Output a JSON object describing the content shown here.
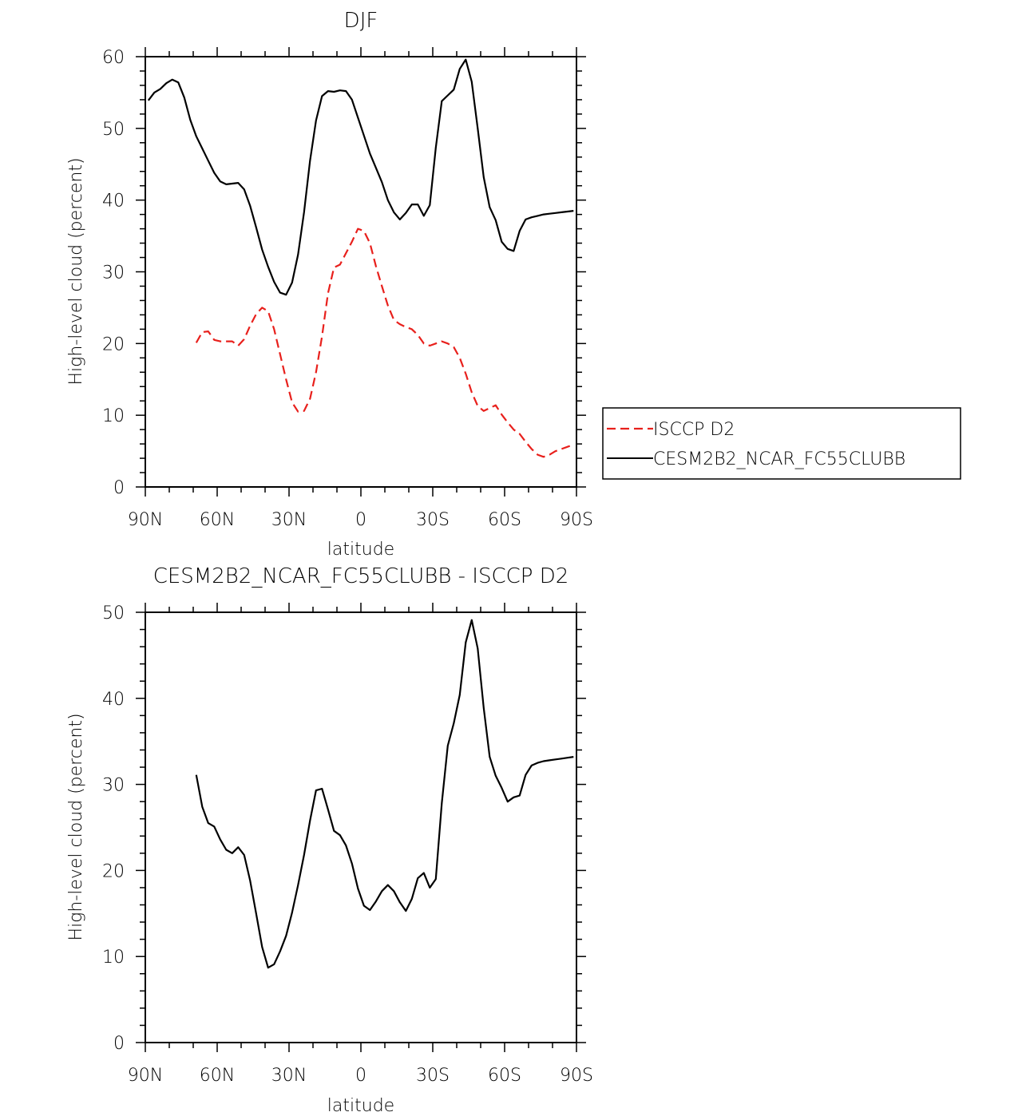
{
  "chart_data": [
    {
      "type": "line",
      "title": "DJF",
      "xlabel": "latitude",
      "ylabel": "High-level cloud (percent)",
      "xlim": [
        -90,
        90
      ],
      "ylim": [
        0,
        60
      ],
      "x_ticks": [
        -90,
        -60,
        -30,
        0,
        30,
        60,
        90
      ],
      "x_tick_labels": [
        "90N",
        "60N",
        "30N",
        "0",
        "30S",
        "60S",
        "90S"
      ],
      "y_ticks": [
        0,
        10,
        20,
        30,
        40,
        50,
        60
      ],
      "y_tick_labels": [
        "0",
        "10",
        "20",
        "30",
        "40",
        "50",
        "60"
      ],
      "legend_position": "right",
      "series": [
        {
          "name": "ISCCP D2",
          "color": "#e8201c",
          "dash": "dashed",
          "x": [
            -68.75,
            -66.25,
            -63.75,
            -61.25,
            -58.75,
            -56.25,
            -53.75,
            -51.25,
            -48.75,
            -46.25,
            -43.75,
            -41.25,
            -38.75,
            -36.25,
            -33.75,
            -31.25,
            -28.75,
            -26.25,
            -23.75,
            -21.25,
            -18.75,
            -16.25,
            -13.75,
            -11.25,
            -8.75,
            -6.25,
            -3.75,
            -1.25,
            1.25,
            3.75,
            6.25,
            8.75,
            11.25,
            13.75,
            16.25,
            18.75,
            21.25,
            23.75,
            26.25,
            28.75,
            31.25,
            33.75,
            36.25,
            38.75,
            41.25,
            43.75,
            46.25,
            48.75,
            51.25,
            53.75,
            56.25,
            58.75,
            61.25,
            63.75,
            66.25,
            68.75,
            71.25,
            73.75,
            76.25,
            78.75,
            81.25,
            83.75,
            86.25,
            88.75
          ],
          "values": [
            20.1,
            21.6,
            21.7,
            20.5,
            20.3,
            20.3,
            20.3,
            19.7,
            20.6,
            22.5,
            24.1,
            25.0,
            24.5,
            22.0,
            18.5,
            15.0,
            11.8,
            10.5,
            10.6,
            12.3,
            16.0,
            21.0,
            27.0,
            30.6,
            31.0,
            32.6,
            34.2,
            36.0,
            35.7,
            34.0,
            30.8,
            28.0,
            25.3,
            23.3,
            22.7,
            22.3,
            22.0,
            21.2,
            20.0,
            19.7,
            20.0,
            20.3,
            20.0,
            19.5,
            18.0,
            15.8,
            13.2,
            11.3,
            10.6,
            11.0,
            11.4,
            10.1,
            9.0,
            8.0,
            7.4,
            6.3,
            5.3,
            4.5,
            4.2,
            4.5,
            5.0,
            5.3,
            5.6,
            5.9
          ]
        },
        {
          "name": "CESM2B2_NCAR_FC55CLUBB",
          "color": "#000000",
          "dash": "solid",
          "x": [
            -88.75,
            -86.25,
            -83.75,
            -81.25,
            -78.75,
            -76.25,
            -73.75,
            -71.25,
            -68.75,
            -66.25,
            -63.75,
            -61.25,
            -58.75,
            -56.25,
            -53.75,
            -51.25,
            -48.75,
            -46.25,
            -43.75,
            -41.25,
            -38.75,
            -36.25,
            -33.75,
            -31.25,
            -28.75,
            -26.25,
            -23.75,
            -21.25,
            -18.75,
            -16.25,
            -13.75,
            -11.25,
            -8.75,
            -6.25,
            -3.75,
            -1.25,
            1.25,
            3.75,
            6.25,
            8.75,
            11.25,
            13.75,
            16.25,
            18.75,
            21.25,
            23.75,
            26.25,
            28.75,
            31.25,
            33.75,
            36.25,
            38.75,
            41.25,
            43.75,
            46.25,
            48.75,
            51.25,
            53.75,
            56.25,
            58.75,
            61.25,
            63.75,
            66.25,
            68.75,
            71.25,
            73.75,
            76.25,
            78.75,
            81.25,
            83.75,
            86.25,
            88.75
          ],
          "values": [
            53.9,
            55.0,
            55.5,
            56.3,
            56.8,
            56.4,
            54.3,
            51.2,
            48.9,
            47.2,
            45.5,
            43.8,
            42.6,
            42.2,
            42.3,
            42.4,
            41.5,
            39.2,
            36.2,
            33.1,
            30.7,
            28.6,
            27.1,
            26.8,
            28.5,
            32.4,
            38.3,
            45.5,
            51.1,
            54.5,
            55.2,
            55.1,
            55.3,
            55.2,
            54.0,
            51.5,
            49.0,
            46.5,
            44.5,
            42.5,
            40.0,
            38.3,
            37.3,
            38.2,
            39.4,
            39.4,
            37.8,
            39.3,
            47.3,
            53.8,
            54.6,
            55.4,
            58.3,
            59.6,
            56.5,
            50.0,
            43.2,
            39.0,
            37.2,
            34.2,
            33.2,
            32.9,
            35.7,
            37.3,
            37.6,
            37.8,
            38.0,
            38.1,
            38.2,
            38.3,
            38.4,
            38.5
          ]
        }
      ]
    },
    {
      "type": "line",
      "title": "CESM2B2_NCAR_FC55CLUBB - ISCCP D2",
      "xlabel": "latitude",
      "ylabel": "High-level cloud (percent)",
      "xlim": [
        -90,
        90
      ],
      "ylim": [
        0,
        50
      ],
      "x_ticks": [
        -90,
        -60,
        -30,
        0,
        30,
        60,
        90
      ],
      "x_tick_labels": [
        "90N",
        "60N",
        "30N",
        "0",
        "30S",
        "60S",
        "90S"
      ],
      "y_ticks": [
        0,
        10,
        20,
        30,
        40,
        50
      ],
      "y_tick_labels": [
        "0",
        "10",
        "20",
        "30",
        "40",
        "50"
      ],
      "series": [
        {
          "color": "#000000",
          "dash": "solid",
          "x": [
            -68.75,
            -66.25,
            -63.75,
            -61.25,
            -58.75,
            -56.25,
            -53.75,
            -51.25,
            -48.75,
            -46.25,
            -43.75,
            -41.25,
            -38.75,
            -36.25,
            -33.75,
            -31.25,
            -28.75,
            -26.25,
            -23.75,
            -21.25,
            -18.75,
            -16.25,
            -13.75,
            -11.25,
            -8.75,
            -6.25,
            -3.75,
            -1.25,
            1.25,
            3.75,
            6.25,
            8.75,
            11.25,
            13.75,
            16.25,
            18.75,
            21.25,
            23.75,
            26.25,
            28.75,
            31.25,
            33.75,
            36.25,
            38.75,
            41.25,
            43.75,
            46.25,
            48.75,
            51.25,
            53.75,
            56.25,
            58.75,
            61.25,
            63.75,
            66.25,
            68.75,
            71.25,
            73.75,
            76.25,
            78.75,
            81.25,
            83.75,
            86.25,
            88.75
          ],
          "values": [
            31.1,
            27.4,
            25.5,
            25.1,
            23.6,
            22.4,
            22.0,
            22.7,
            21.8,
            18.8,
            15.0,
            11.1,
            8.7,
            9.1,
            10.6,
            12.4,
            15.1,
            18.3,
            21.8,
            25.8,
            29.3,
            29.5,
            27.1,
            24.6,
            24.1,
            22.9,
            20.8,
            17.9,
            15.9,
            15.4,
            16.4,
            17.6,
            18.3,
            17.6,
            16.3,
            15.3,
            16.7,
            19.1,
            19.7,
            18.0,
            19.0,
            27.8,
            34.5,
            37.1,
            40.4,
            46.5,
            49.1,
            45.8,
            38.9,
            33.2,
            31.0,
            29.6,
            28.0,
            28.5,
            28.7,
            31.1,
            32.2,
            32.5,
            32.7,
            32.8,
            32.9,
            33.0,
            33.1,
            33.2
          ]
        }
      ]
    }
  ]
}
